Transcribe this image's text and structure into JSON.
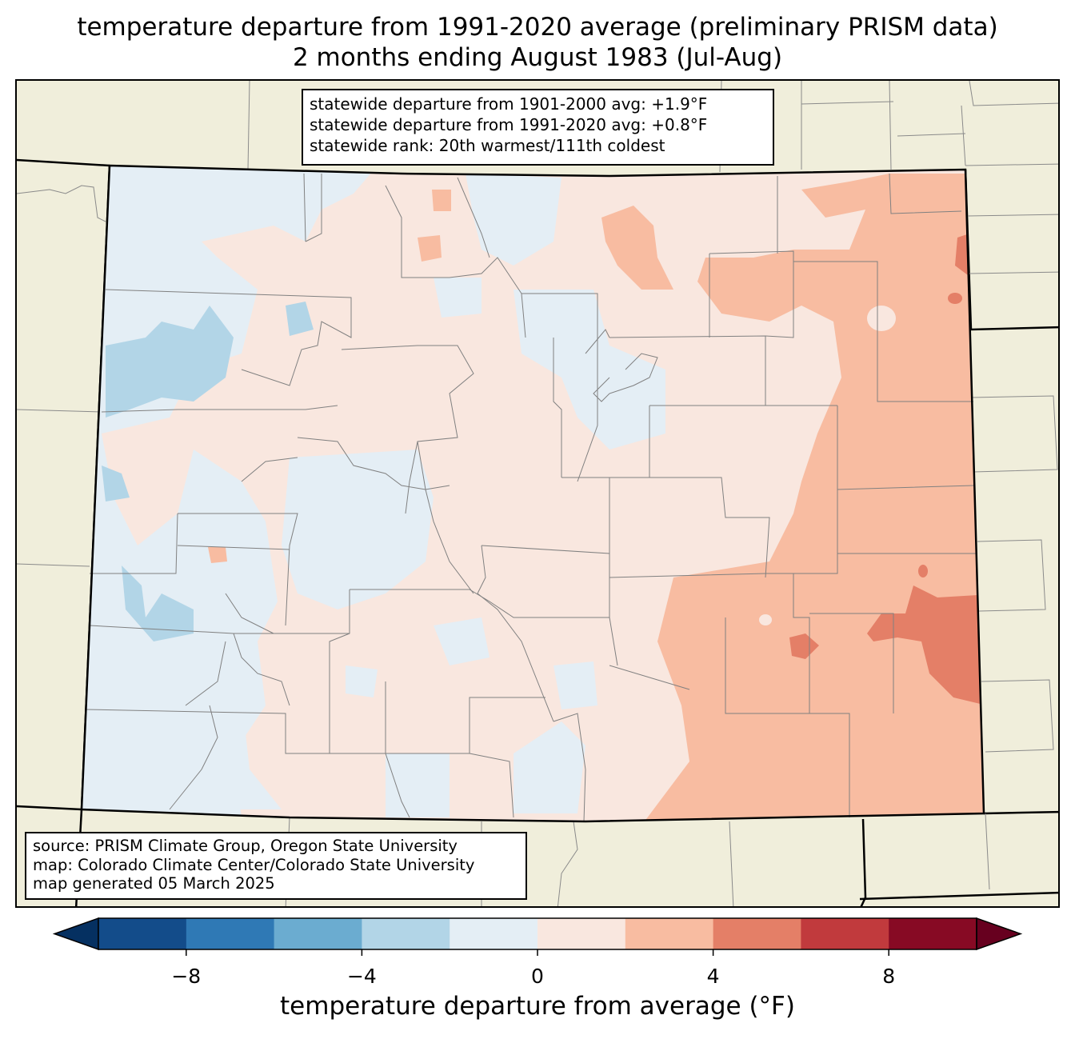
{
  "title": {
    "line1": "temperature departure from 1991-2020 average (preliminary PRISM data)",
    "line2": "2 months ending August 1983 (Jul-Aug)"
  },
  "stats": {
    "line1": "statewide departure from 1901-2000 avg: +1.9°F",
    "line2": "statewide departure from 1991-2020 avg: +0.8°F",
    "line3": "statewide rank: 20th warmest/111th coldest"
  },
  "source": {
    "line1": "source: PRISM Climate Group, Oregon State University",
    "line2": "map: Colorado Climate Center/Colorado State University",
    "line3": "map generated 05 March 2025"
  },
  "colorbar": {
    "label": "temperature departure from average (°F)",
    "bounds": [
      -10,
      10
    ],
    "step": 2,
    "ticks": [
      -8,
      -4,
      0,
      4,
      8
    ],
    "tick_labels": [
      "−8",
      "−4",
      "0",
      "4",
      "8"
    ],
    "colors": [
      "#053061",
      "#134c8a",
      "#2f79b5",
      "#6bacd0",
      "#b2d5e7",
      "#e4eef5",
      "#f9e7df",
      "#f8bca1",
      "#e47f67",
      "#c13a3d",
      "#870a24",
      "#67001f"
    ]
  },
  "colors": {
    "land": "#f0eedb",
    "slightly_below": "#e4eef5",
    "below_2_4": "#b2d5e7",
    "above_0_2": "#f9e7df",
    "above_2_4": "#f8bca1",
    "above_4_6": "#e47f67"
  }
}
